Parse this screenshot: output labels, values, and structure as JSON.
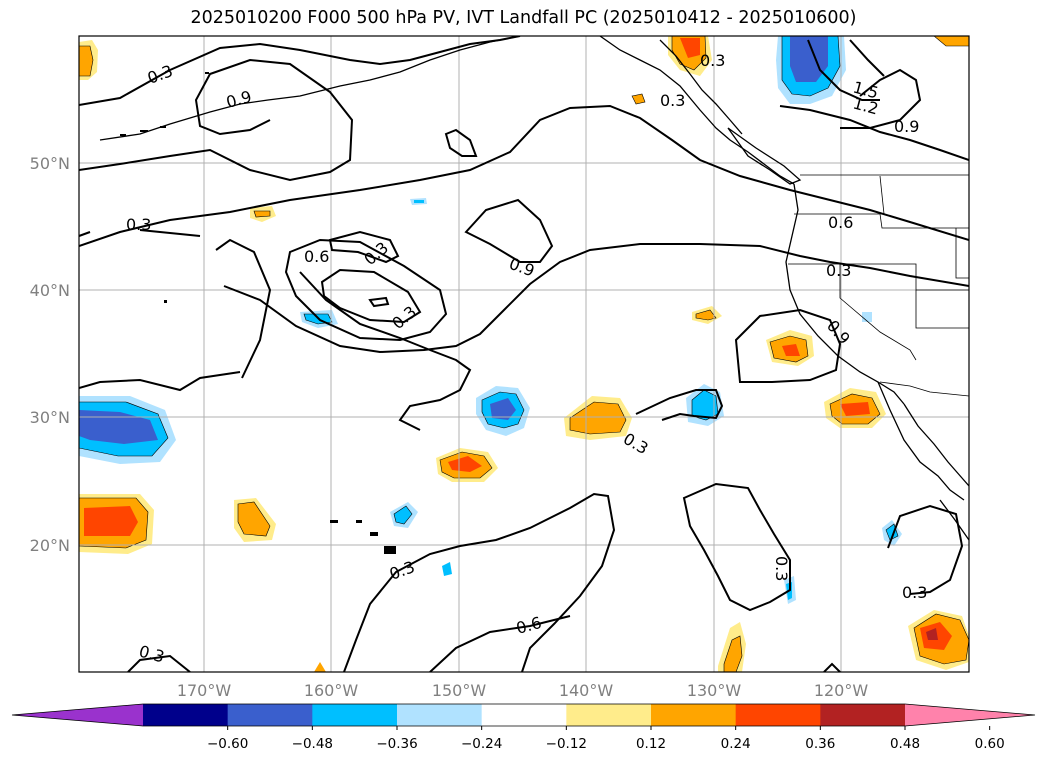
{
  "title": "2025010200 F000 500 hPa PV, IVT Landfall PC (2025010412 - 2025010600)",
  "lat_labels": [
    "50°N",
    "40°N",
    "30°N",
    "20°N"
  ],
  "lon_labels": [
    "170°W",
    "160°W",
    "150°W",
    "140°W",
    "130°W",
    "120°W"
  ],
  "colorbar": {
    "tick_labels": [
      "−0.60",
      "−0.48",
      "−0.36",
      "−0.24",
      "−0.12",
      "0.12",
      "0.24",
      "0.36",
      "0.48",
      "0.60"
    ],
    "colors": [
      "#9a32cd",
      "#00008b",
      "#3a5fcd",
      "#00bfff",
      "#b0e2ff",
      "#ffffff",
      "#ffec8b",
      "#ffa500",
      "#ff4500",
      "#b22222",
      "#ff82ab"
    ]
  },
  "contour_labels": [
    "0.3",
    "0.9",
    "0.3",
    "0.3",
    "1.5",
    "1.2",
    "0.9",
    "0.3",
    "0.6",
    "0.3",
    "0.9",
    "0.6",
    "0.3",
    "0.3",
    "0.9",
    "0.3",
    "0.3",
    "0.3",
    "0.6",
    "0.3",
    "0.3"
  ]
}
